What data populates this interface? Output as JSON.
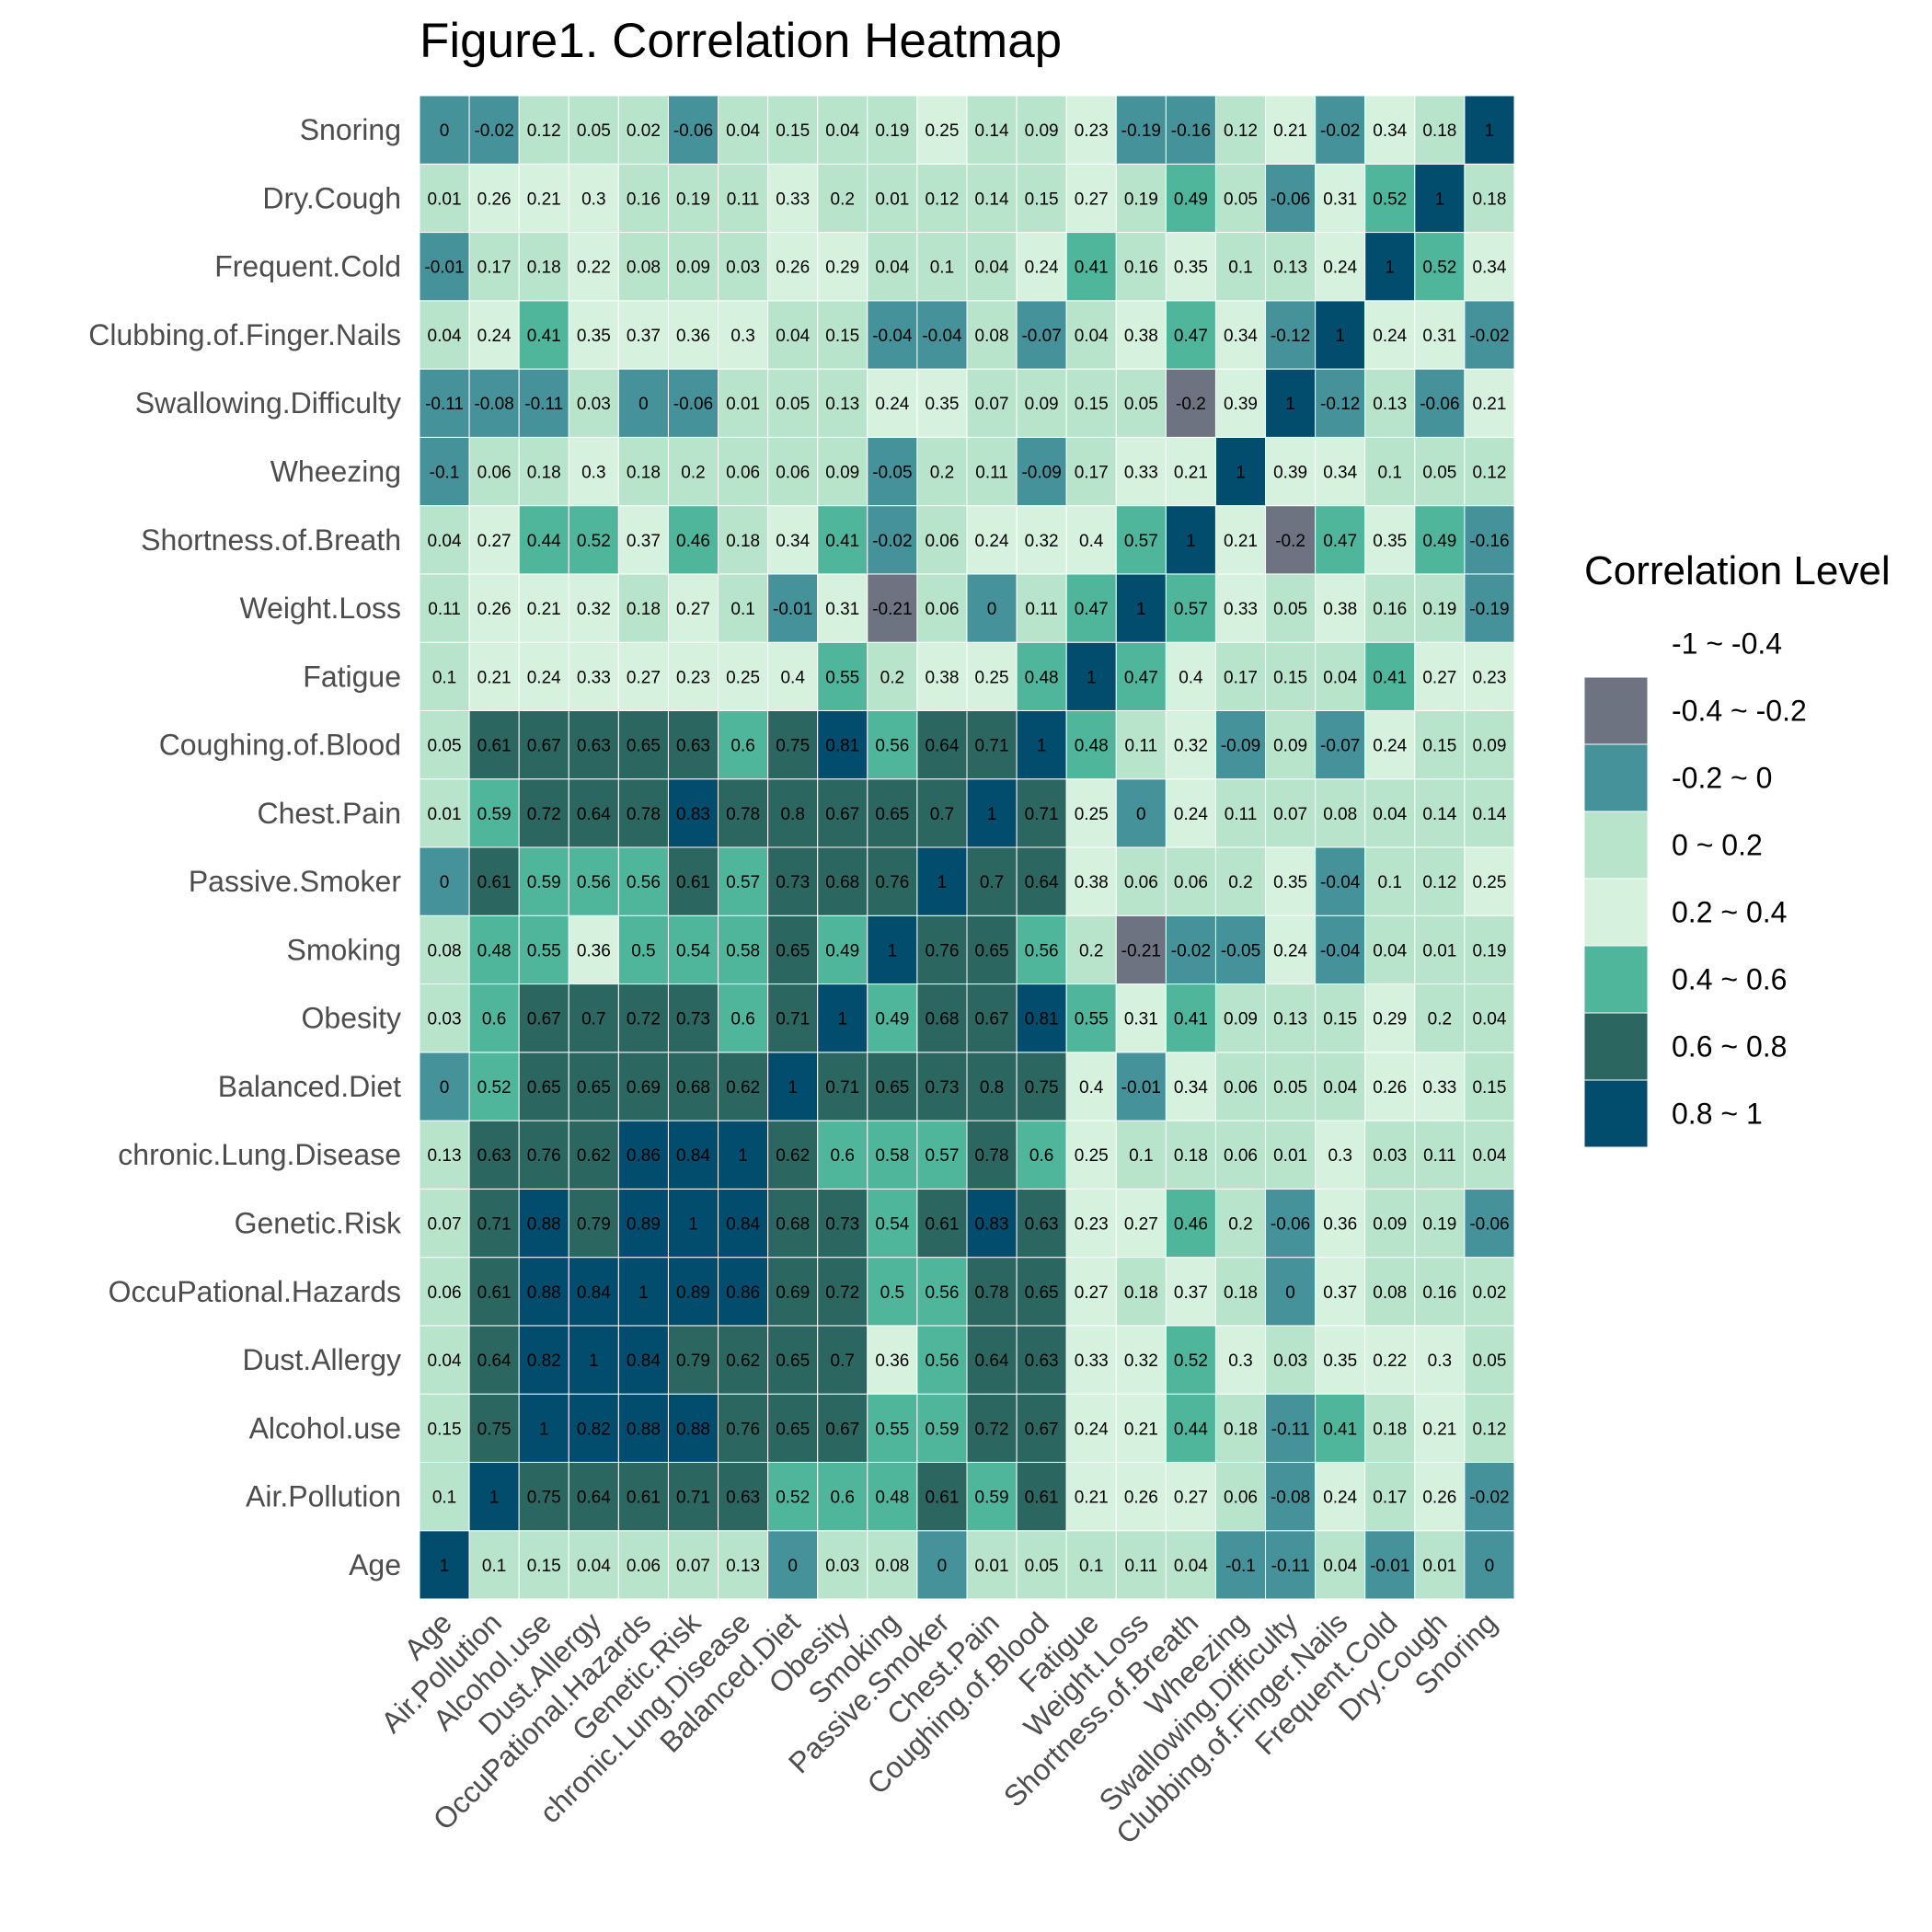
{
  "chart_data": {
    "type": "heatmap",
    "title": "Figure1. Correlation Heatmap",
    "variables": [
      "Age",
      "Air.Pollution",
      "Alcohol.use",
      "Dust.Allergy",
      "OccuPational.Hazards",
      "Genetic.Risk",
      "chronic.Lung.Disease",
      "Balanced.Diet",
      "Obesity",
      "Smoking",
      "Passive.Smoker",
      "Chest.Pain",
      "Coughing.of.Blood",
      "Fatigue",
      "Weight.Loss",
      "Shortness.of.Breath",
      "Wheezing",
      "Swallowing.Difficulty",
      "Clubbing.of.Finger.Nails",
      "Frequent.Cold",
      "Dry.Cough",
      "Snoring"
    ],
    "matrix": [
      [
        1,
        0.1,
        0.15,
        0.04,
        0.06,
        0.07,
        0.13,
        0,
        0.03,
        0.08,
        0,
        0.01,
        0.05,
        0.1,
        0.11,
        0.04,
        -0.1,
        -0.11,
        0.04,
        -0.01,
        0.01,
        0
      ],
      [
        0.1,
        1,
        0.75,
        0.64,
        0.61,
        0.71,
        0.63,
        0.52,
        0.6,
        0.48,
        0.61,
        0.59,
        0.61,
        0.21,
        0.26,
        0.27,
        0.06,
        -0.08,
        0.24,
        0.17,
        0.26,
        -0.02
      ],
      [
        0.15,
        0.75,
        1,
        0.82,
        0.88,
        0.88,
        0.76,
        0.65,
        0.67,
        0.55,
        0.59,
        0.72,
        0.67,
        0.24,
        0.21,
        0.44,
        0.18,
        -0.11,
        0.41,
        0.18,
        0.21,
        0.12
      ],
      [
        0.04,
        0.64,
        0.82,
        1,
        0.84,
        0.79,
        0.62,
        0.65,
        0.7,
        0.36,
        0.56,
        0.64,
        0.63,
        0.33,
        0.32,
        0.52,
        0.3,
        0.03,
        0.35,
        0.22,
        0.3,
        0.05
      ],
      [
        0.06,
        0.61,
        0.88,
        0.84,
        1,
        0.89,
        0.86,
        0.69,
        0.72,
        0.5,
        0.56,
        0.78,
        0.65,
        0.27,
        0.18,
        0.37,
        0.18,
        0,
        0.37,
        0.08,
        0.16,
        0.02
      ],
      [
        0.07,
        0.71,
        0.88,
        0.79,
        0.89,
        1,
        0.84,
        0.68,
        0.73,
        0.54,
        0.61,
        0.83,
        0.63,
        0.23,
        0.27,
        0.46,
        0.2,
        -0.06,
        0.36,
        0.09,
        0.19,
        -0.06
      ],
      [
        0.13,
        0.63,
        0.76,
        0.62,
        0.86,
        0.84,
        1,
        0.62,
        0.6,
        0.58,
        0.57,
        0.78,
        0.6,
        0.25,
        0.1,
        0.18,
        0.06,
        0.01,
        0.3,
        0.03,
        0.11,
        0.04
      ],
      [
        0,
        0.52,
        0.65,
        0.65,
        0.69,
        0.68,
        0.62,
        1,
        0.71,
        0.65,
        0.73,
        0.8,
        0.75,
        0.4,
        -0.01,
        0.34,
        0.06,
        0.05,
        0.04,
        0.26,
        0.33,
        0.15
      ],
      [
        0.03,
        0.6,
        0.67,
        0.7,
        0.72,
        0.73,
        0.6,
        0.71,
        1,
        0.49,
        0.68,
        0.67,
        0.81,
        0.55,
        0.31,
        0.41,
        0.09,
        0.13,
        0.15,
        0.29,
        0.2,
        0.04
      ],
      [
        0.08,
        0.48,
        0.55,
        0.36,
        0.5,
        0.54,
        0.58,
        0.65,
        0.49,
        1,
        0.76,
        0.65,
        0.56,
        0.2,
        -0.21,
        -0.02,
        -0.05,
        0.24,
        -0.04,
        0.04,
        0.01,
        0.19
      ],
      [
        0,
        0.61,
        0.59,
        0.56,
        0.56,
        0.61,
        0.57,
        0.73,
        0.68,
        0.76,
        1,
        0.7,
        0.64,
        0.38,
        0.06,
        0.06,
        0.2,
        0.35,
        -0.04,
        0.1,
        0.12,
        0.25
      ],
      [
        0.01,
        0.59,
        0.72,
        0.64,
        0.78,
        0.83,
        0.78,
        0.8,
        0.67,
        0.65,
        0.7,
        1,
        0.71,
        0.25,
        0,
        0.24,
        0.11,
        0.07,
        0.08,
        0.04,
        0.14,
        0.14
      ],
      [
        0.05,
        0.61,
        0.67,
        0.63,
        0.65,
        0.63,
        0.6,
        0.75,
        0.81,
        0.56,
        0.64,
        0.71,
        1,
        0.48,
        0.11,
        0.32,
        -0.09,
        0.09,
        -0.07,
        0.24,
        0.15,
        0.09
      ],
      [
        0.1,
        0.21,
        0.24,
        0.33,
        0.27,
        0.23,
        0.25,
        0.4,
        0.55,
        0.2,
        0.38,
        0.25,
        0.48,
        1,
        0.47,
        0.4,
        0.17,
        0.15,
        0.04,
        0.41,
        0.27,
        0.23
      ],
      [
        0.11,
        0.26,
        0.21,
        0.32,
        0.18,
        0.27,
        0.1,
        -0.01,
        0.31,
        -0.21,
        0.06,
        0,
        0.11,
        0.47,
        1,
        0.57,
        0.33,
        0.05,
        0.38,
        0.16,
        0.19,
        -0.19
      ],
      [
        0.04,
        0.27,
        0.44,
        0.52,
        0.37,
        0.46,
        0.18,
        0.34,
        0.41,
        -0.02,
        0.06,
        0.24,
        0.32,
        0.4,
        0.57,
        1,
        0.21,
        -0.2,
        0.47,
        0.35,
        0.49,
        -0.16
      ],
      [
        -0.1,
        0.06,
        0.18,
        0.3,
        0.18,
        0.2,
        0.06,
        0.06,
        0.09,
        -0.05,
        0.2,
        0.11,
        -0.09,
        0.17,
        0.33,
        0.21,
        1,
        0.39,
        0.34,
        0.1,
        0.05,
        0.12
      ],
      [
        -0.11,
        -0.08,
        -0.11,
        0.03,
        0,
        -0.06,
        0.01,
        0.05,
        0.13,
        0.24,
        0.35,
        0.07,
        0.09,
        0.15,
        0.05,
        -0.2,
        0.39,
        1,
        -0.12,
        0.13,
        -0.06,
        0.21
      ],
      [
        0.04,
        0.24,
        0.41,
        0.35,
        0.37,
        0.36,
        0.3,
        0.04,
        0.15,
        -0.04,
        -0.04,
        0.08,
        -0.07,
        0.04,
        0.38,
        0.47,
        0.34,
        -0.12,
        1,
        0.24,
        0.31,
        -0.02
      ],
      [
        -0.01,
        0.17,
        0.18,
        0.22,
        0.08,
        0.09,
        0.03,
        0.26,
        0.29,
        0.04,
        0.1,
        0.04,
        0.24,
        0.41,
        0.16,
        0.35,
        0.1,
        0.13,
        0.24,
        1,
        0.52,
        0.34
      ],
      [
        0.01,
        0.26,
        0.21,
        0.3,
        0.16,
        0.19,
        0.11,
        0.33,
        0.2,
        0.01,
        0.12,
        0.14,
        0.15,
        0.27,
        0.19,
        0.49,
        0.05,
        -0.06,
        0.31,
        0.52,
        1,
        0.18
      ],
      [
        0,
        -0.02,
        0.12,
        0.05,
        0.02,
        -0.06,
        0.04,
        0.15,
        0.04,
        0.19,
        0.25,
        0.14,
        0.09,
        0.23,
        -0.19,
        -0.16,
        0.12,
        0.21,
        -0.02,
        0.34,
        0.18,
        1
      ]
    ],
    "legend": {
      "title": "Correlation Level",
      "bins": [
        {
          "label": "-1 ~ -0.4",
          "min": -1,
          "max": -0.4,
          "color": "#ffffff"
        },
        {
          "label": "-0.4 ~ -0.2",
          "min": -0.4,
          "max": -0.2,
          "color": "#6e7381"
        },
        {
          "label": "-0.2 ~ 0",
          "min": -0.2,
          "max": 0,
          "color": "#45929b"
        },
        {
          "label": "0 ~ 0.2",
          "min": 0,
          "max": 0.2,
          "color": "#b8e4cb"
        },
        {
          "label": "0.2 ~ 0.4",
          "min": 0.2,
          "max": 0.4,
          "color": "#d6f2df"
        },
        {
          "label": "0.4 ~ 0.6",
          "min": 0.4,
          "max": 0.6,
          "color": "#4fb69b"
        },
        {
          "label": "0.6 ~ 0.8",
          "min": 0.6,
          "max": 0.8,
          "color": "#2b6661"
        },
        {
          "label": "0.8 ~ 1",
          "min": 0.8,
          "max": 1,
          "color": "#024c6e"
        }
      ],
      "placement": "right"
    },
    "grid": false
  }
}
